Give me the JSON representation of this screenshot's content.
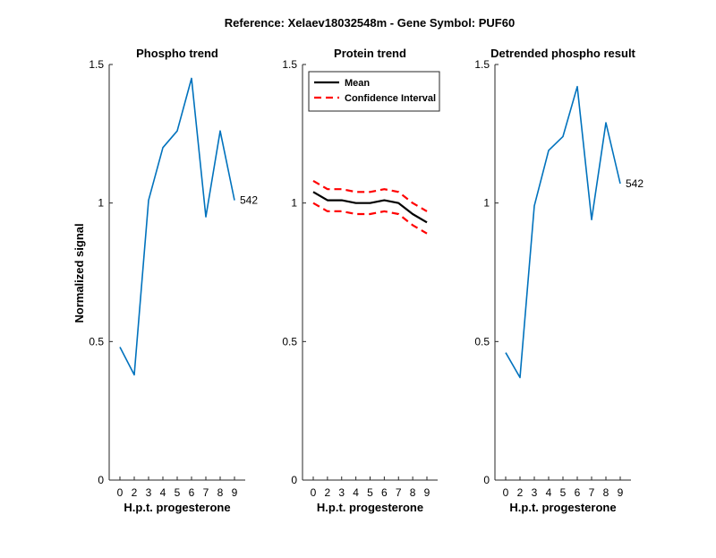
{
  "figure": {
    "title": "Reference:  Xelaev18032548m - Gene Symbol:  PUF60",
    "ylabel": "Normalized signal"
  },
  "chart_data": [
    {
      "type": "line",
      "title": "Phospho trend",
      "xlabel": "H.p.t. progesterone",
      "categories": [
        "0",
        "2",
        "3",
        "4",
        "5",
        "6",
        "7",
        "8",
        "9"
      ],
      "ylim": [
        0,
        1.5
      ],
      "yticks": [
        "0",
        "0.5",
        "1",
        "1.5"
      ],
      "grid": false,
      "series": [
        {
          "color": "#0072BD",
          "style": "solid",
          "values": [
            0.48,
            0.38,
            1.01,
            1.2,
            1.26,
            1.45,
            0.95,
            1.26,
            1.01
          ]
        }
      ],
      "annotation": "542"
    },
    {
      "type": "line",
      "title": "Protein trend",
      "xlabel": "H.p.t. progesterone",
      "categories": [
        "0",
        "2",
        "3",
        "4",
        "5",
        "6",
        "7",
        "8",
        "9"
      ],
      "ylim": [
        0,
        1.5
      ],
      "yticks": [
        "0",
        "0.5",
        "1",
        "1.5"
      ],
      "grid": false,
      "legend_position": "top-left",
      "series": [
        {
          "name": "Mean",
          "color": "#000000",
          "style": "solid",
          "values": [
            1.04,
            1.01,
            1.01,
            1.0,
            1.0,
            1.01,
            1.0,
            0.96,
            0.93
          ]
        },
        {
          "name": "Confidence Interval",
          "color": "#FF0000",
          "style": "dashed",
          "values": [
            1.08,
            1.05,
            1.05,
            1.04,
            1.04,
            1.05,
            1.04,
            1.0,
            0.97
          ]
        },
        {
          "color": "#FF0000",
          "style": "dashed",
          "values": [
            1.0,
            0.97,
            0.97,
            0.96,
            0.96,
            0.97,
            0.96,
            0.92,
            0.89
          ]
        }
      ]
    },
    {
      "type": "line",
      "title": "Detrended phospho result",
      "xlabel": "H.p.t. progesterone",
      "categories": [
        "0",
        "2",
        "3",
        "4",
        "5",
        "6",
        "7",
        "8",
        "9"
      ],
      "ylim": [
        0,
        1.5
      ],
      "yticks": [
        "0",
        "0.5",
        "1",
        "1.5"
      ],
      "grid": false,
      "series": [
        {
          "color": "#0072BD",
          "style": "solid",
          "values": [
            0.46,
            0.37,
            0.99,
            1.19,
            1.24,
            1.42,
            0.94,
            1.29,
            1.07
          ]
        }
      ],
      "annotation": "542"
    }
  ]
}
